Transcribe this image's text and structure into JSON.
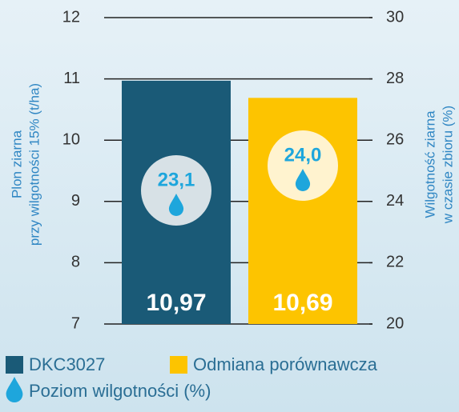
{
  "chart_data": {
    "type": "bar",
    "ylabel": [
      "Plon ziarna",
      "przy wilgotności 15% (t/ha)"
    ],
    "y2label": [
      "Wilgotność ziarna",
      "w czasie zbioru (%)"
    ],
    "ylim": [
      7,
      12
    ],
    "yticks": [
      7,
      8,
      9,
      10,
      11,
      12
    ],
    "y2lim": [
      20,
      30
    ],
    "y2ticks": [
      20,
      22,
      24,
      26,
      28,
      30
    ],
    "series": [
      {
        "name": "DKC3027",
        "color": "#1a5a77",
        "values": [
          10.97
        ],
        "value_labels": [
          "10,97"
        ],
        "moisture": [
          23.1
        ],
        "moisture_labels": [
          "23,1"
        ],
        "circle_color": "#d7e1e6"
      },
      {
        "name": "Odmiana porównawcza",
        "color": "#fdc400",
        "values": [
          10.69
        ],
        "value_labels": [
          "10,69"
        ],
        "moisture": [
          24.0
        ],
        "moisture_labels": [
          "24,0"
        ],
        "circle_color": "#fff3cf"
      }
    ],
    "moisture_legend": "Poziom wilgotności (%)",
    "moisture_color": "#1ea6dc",
    "grid": true
  }
}
